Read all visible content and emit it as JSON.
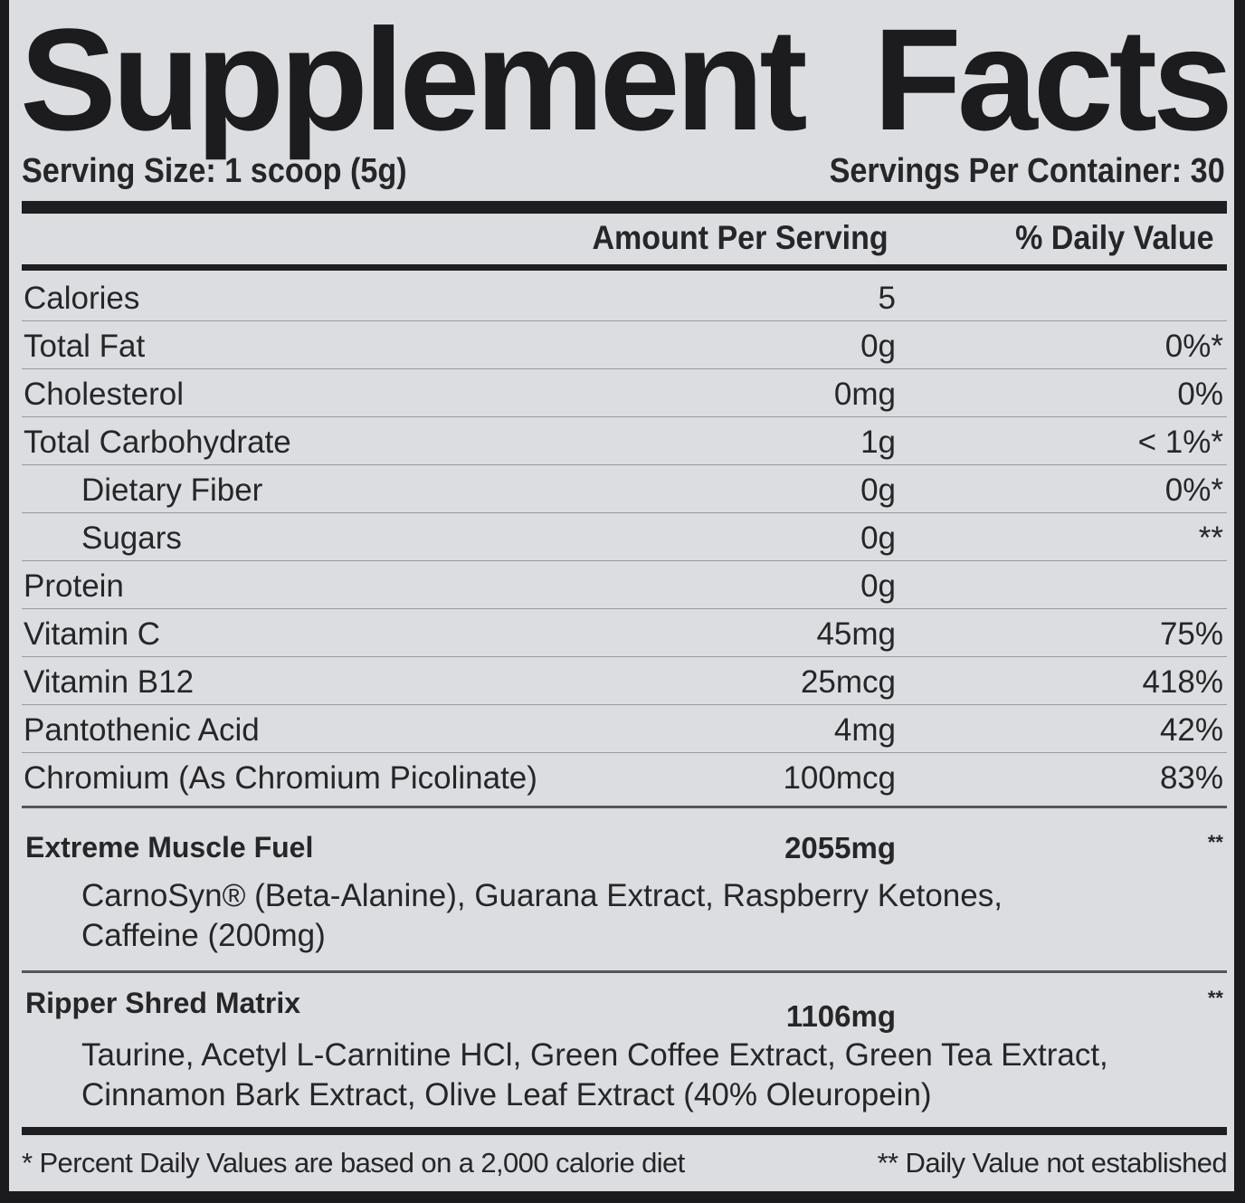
{
  "title": {
    "word1": "Supplement",
    "word2": "Facts"
  },
  "serving_size": "Serving Size: 1 scoop (5g)",
  "servings_per_container": "Servings Per Container: 30",
  "headers": {
    "amount": "Amount Per Serving",
    "dv": "% Daily Value"
  },
  "nutrients": [
    {
      "name": "Calories",
      "amount": "5",
      "dv": "",
      "indent": false
    },
    {
      "name": "Total Fat",
      "amount": "0g",
      "dv": "0%*",
      "indent": false
    },
    {
      "name": "Cholesterol",
      "amount": "0mg",
      "dv": "0%",
      "indent": false
    },
    {
      "name": "Total Carbohydrate",
      "amount": "1g",
      "dv": "< 1%*",
      "indent": false
    },
    {
      "name": "Dietary Fiber",
      "amount": "0g",
      "dv": "0%*",
      "indent": true
    },
    {
      "name": "Sugars",
      "amount": "0g",
      "dv": "**",
      "indent": true
    },
    {
      "name": "Protein",
      "amount": "0g",
      "dv": "",
      "indent": false
    },
    {
      "name": "Vitamin C",
      "amount": "45mg",
      "dv": "75%",
      "indent": false
    },
    {
      "name": "Vitamin B12",
      "amount": "25mcg",
      "dv": "418%",
      "indent": false
    },
    {
      "name": "Pantothenic Acid",
      "amount": "4mg",
      "dv": "42%",
      "indent": false
    },
    {
      "name": "Chromium (As Chromium Picolinate)",
      "amount": "100mcg",
      "dv": "83%",
      "indent": false
    }
  ],
  "blends": [
    {
      "name": "Extreme Muscle Fuel",
      "amount": "2055mg",
      "dv": "**",
      "ingredients": [
        "CarnoSyn® (Beta-Alanine), Guarana Extract, Raspberry Ketones,",
        "Caffeine (200mg)"
      ]
    },
    {
      "name": "Ripper Shred Matrix",
      "amount": "1106mg",
      "dv": "**",
      "ingredients": [
        "Taurine, Acetyl L-Carnitine HCl, Green Coffee Extract, Green Tea Extract,",
        "Cinnamon Bark Extract, Olive Leaf Extract (40% Oleuropein)"
      ]
    }
  ],
  "footnotes": {
    "left": "* Percent Daily Values are based on a 2,000 calorie diet",
    "right": "** Daily Value not established"
  }
}
